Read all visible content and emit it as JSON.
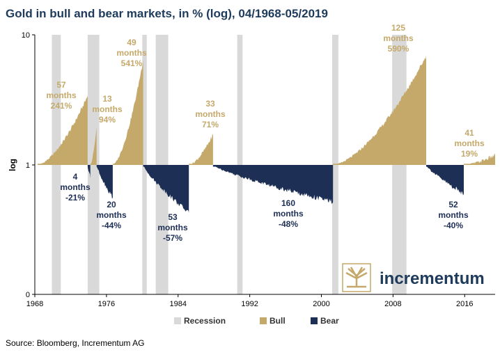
{
  "chart_data": {
    "type": "area",
    "title": "Gold in bull and bear markets, in % (log), 04/1968-05/2019",
    "ylabel": "log",
    "xlabel": "",
    "xlim": [
      1968,
      2019.4
    ],
    "log_scale": true,
    "y_ticks": [
      "10",
      "1",
      "0"
    ],
    "x_ticks": [
      "1968",
      "1976",
      "1984",
      "1992",
      "2000",
      "2008",
      "2016"
    ],
    "grid": false,
    "legend": {
      "placement": "bottom",
      "items": [
        {
          "label": "Recession",
          "color": "#d9d9d9"
        },
        {
          "label": "Bull",
          "color": "#c4a96a"
        },
        {
          "label": "Bear",
          "color": "#1e2f55"
        }
      ]
    },
    "recessions": [
      [
        1969.9,
        1970.9
      ],
      [
        1973.9,
        1975.2
      ],
      [
        1980.0,
        1980.5
      ],
      [
        1981.5,
        1982.9
      ],
      [
        1990.6,
        1991.2
      ],
      [
        2001.2,
        2001.9
      ],
      [
        2007.9,
        2009.5
      ]
    ],
    "bull_markets": [
      {
        "months": "57",
        "change": "241%",
        "start": 1968.3,
        "end": 1973.9,
        "peak": 3.4
      },
      {
        "months": "13",
        "change": "94%",
        "start": 1974.2,
        "end": 1974.9,
        "peak": 1.94
      },
      {
        "months": "49",
        "change": "541%",
        "start": 1976.7,
        "end": 1980.1,
        "peak": 6.41
      },
      {
        "months": "33",
        "change": "71%",
        "start": 1985.2,
        "end": 1987.9,
        "peak": 1.71
      },
      {
        "months": "125",
        "change": "590%",
        "start": 2001.3,
        "end": 2011.7,
        "peak": 6.9
      },
      {
        "months": "41",
        "change": "19%",
        "start": 2015.9,
        "end": 2019.4,
        "peak": 1.19
      }
    ],
    "bear_markets": [
      {
        "months": "4",
        "change": "-21%",
        "start": 1973.9,
        "end": 1974.2,
        "trough": 0.79
      },
      {
        "months": "20",
        "change": "-44%",
        "start": 1974.9,
        "end": 1976.7,
        "trough": 0.56
      },
      {
        "months": "53",
        "change": "-57%",
        "start": 1980.1,
        "end": 1985.2,
        "trough": 0.43
      },
      {
        "months": "160",
        "change": "-48%",
        "start": 1987.9,
        "end": 2001.3,
        "trough": 0.52
      },
      {
        "months": "52",
        "change": "-40%",
        "start": 2011.7,
        "end": 2015.9,
        "trough": 0.6
      }
    ]
  },
  "logo": {
    "text": "incrementum"
  },
  "source": "Source: Bloomberg, Incrementum AG"
}
